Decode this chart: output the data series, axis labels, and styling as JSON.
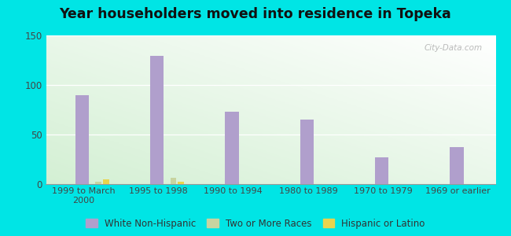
{
  "title": "Year householders moved into residence in Topeka",
  "categories": [
    "1999 to March\n2000",
    "1995 to 1998",
    "1990 to 1994",
    "1980 to 1989",
    "1970 to 1979",
    "1969 or earlier"
  ],
  "series": {
    "White Non-Hispanic": [
      90,
      129,
      73,
      65,
      27,
      37
    ],
    "Two or More Races": [
      2,
      6,
      0,
      0,
      0,
      0
    ],
    "Hispanic or Latino": [
      5,
      2,
      0,
      0,
      0,
      0
    ]
  },
  "colors": {
    "White Non-Hispanic": "#b09fcc",
    "Two or More Races": "#c8d4a0",
    "Hispanic or Latino": "#e8d44d"
  },
  "ylim": [
    0,
    150
  ],
  "yticks": [
    0,
    50,
    100,
    150
  ],
  "background_color": "#00e5e5",
  "watermark": "City-Data.com",
  "legend_items": [
    "White Non-Hispanic",
    "Two or More Races",
    "Hispanic or Latino"
  ]
}
